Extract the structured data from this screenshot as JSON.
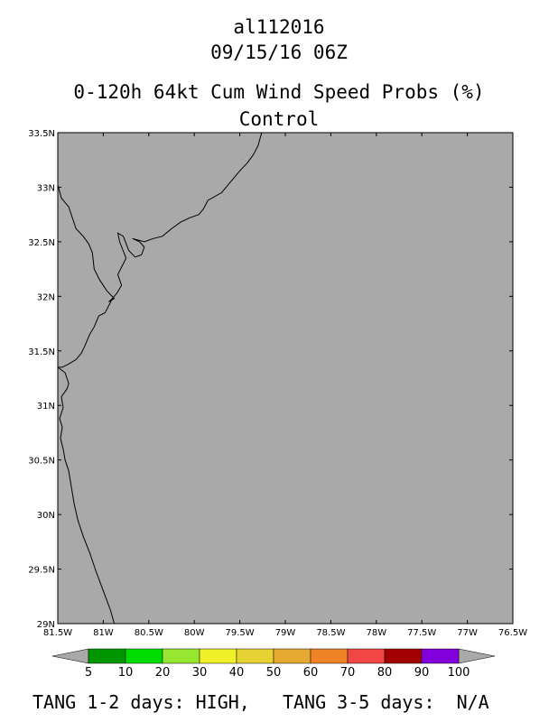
{
  "header": {
    "storm_id": "al112016",
    "datetime": "09/15/16 06Z",
    "product": "0-120h 64kt Cum Wind Speed Probs (%)",
    "run": "Control"
  },
  "map": {
    "lon_range": [
      -81.5,
      -76.5
    ],
    "lat_range": [
      29.0,
      33.5
    ],
    "background_color": "#a9a9a9",
    "lon_ticks": [
      {
        "value": -81.5,
        "label": "81.5W"
      },
      {
        "value": -81.0,
        "label": "81W"
      },
      {
        "value": -80.5,
        "label": "80.5W"
      },
      {
        "value": -80.0,
        "label": "80W"
      },
      {
        "value": -79.5,
        "label": "79.5W"
      },
      {
        "value": -79.0,
        "label": "79W"
      },
      {
        "value": -78.5,
        "label": "78.5W"
      },
      {
        "value": -78.0,
        "label": "78W"
      },
      {
        "value": -77.5,
        "label": "77.5W"
      },
      {
        "value": -77.0,
        "label": "77W"
      },
      {
        "value": -76.5,
        "label": "76.5W"
      }
    ],
    "lat_ticks": [
      {
        "value": 33.5,
        "label": "33.5N"
      },
      {
        "value": 33.0,
        "label": "33N"
      },
      {
        "value": 32.5,
        "label": "32.5N"
      },
      {
        "value": 32.0,
        "label": "32N"
      },
      {
        "value": 31.5,
        "label": "31.5N"
      },
      {
        "value": 31.0,
        "label": "31N"
      },
      {
        "value": 30.5,
        "label": "30.5N"
      },
      {
        "value": 30.0,
        "label": "30N"
      },
      {
        "value": 29.5,
        "label": "29.5N"
      },
      {
        "value": 29.0,
        "label": "29N"
      }
    ],
    "coastline": [
      [
        -81.5,
        33.02
      ],
      [
        -81.46,
        32.9
      ],
      [
        -81.38,
        32.82
      ],
      [
        -81.3,
        32.62
      ],
      [
        -81.22,
        32.55
      ],
      [
        -81.16,
        32.48
      ],
      [
        -81.12,
        32.4
      ],
      [
        -81.1,
        32.25
      ],
      [
        -81.04,
        32.15
      ],
      [
        -80.96,
        32.05
      ],
      [
        -80.88,
        31.98
      ],
      [
        -80.94,
        31.95
      ],
      [
        -80.9,
        31.98
      ],
      [
        -80.85,
        32.03
      ],
      [
        -80.8,
        32.1
      ],
      [
        -80.84,
        32.2
      ],
      [
        -80.78,
        32.3
      ],
      [
        -80.75,
        32.35
      ],
      [
        -80.82,
        32.5
      ],
      [
        -80.84,
        32.58
      ],
      [
        -80.78,
        32.55
      ],
      [
        -80.72,
        32.42
      ],
      [
        -80.65,
        32.36
      ],
      [
        -80.58,
        32.38
      ],
      [
        -80.55,
        32.45
      ],
      [
        -80.6,
        32.5
      ],
      [
        -80.68,
        32.53
      ],
      [
        -80.55,
        32.5
      ],
      [
        -80.45,
        32.53
      ],
      [
        -80.35,
        32.55
      ],
      [
        -80.25,
        32.62
      ],
      [
        -80.15,
        32.68
      ],
      [
        -80.05,
        32.72
      ],
      [
        -79.95,
        32.75
      ],
      [
        -79.9,
        32.8
      ],
      [
        -79.85,
        32.88
      ],
      [
        -79.7,
        32.95
      ],
      [
        -79.6,
        33.05
      ],
      [
        -79.5,
        33.15
      ],
      [
        -79.42,
        33.22
      ],
      [
        -79.35,
        33.3
      ],
      [
        -79.3,
        33.38
      ],
      [
        -79.26,
        33.5
      ]
    ],
    "coastline_south": [
      [
        -81.5,
        31.35
      ],
      [
        -81.42,
        31.3
      ],
      [
        -81.38,
        31.2
      ],
      [
        -81.4,
        31.15
      ],
      [
        -81.46,
        31.08
      ],
      [
        -81.44,
        30.98
      ],
      [
        -81.48,
        30.88
      ],
      [
        -81.45,
        30.8
      ],
      [
        -81.47,
        30.7
      ],
      [
        -81.44,
        30.6
      ],
      [
        -81.42,
        30.5
      ],
      [
        -81.38,
        30.4
      ],
      [
        -81.35,
        30.25
      ],
      [
        -81.32,
        30.1
      ],
      [
        -81.28,
        29.95
      ],
      [
        -81.22,
        29.8
      ],
      [
        -81.15,
        29.65
      ],
      [
        -81.08,
        29.48
      ],
      [
        -81.0,
        29.3
      ],
      [
        -80.92,
        29.12
      ],
      [
        -80.88,
        29.0
      ]
    ],
    "coastline_mid": [
      [
        -80.9,
        31.98
      ],
      [
        -80.98,
        31.85
      ],
      [
        -81.05,
        31.82
      ],
      [
        -81.1,
        31.72
      ],
      [
        -81.15,
        31.65
      ],
      [
        -81.2,
        31.55
      ],
      [
        -81.24,
        31.48
      ],
      [
        -81.3,
        31.42
      ],
      [
        -81.38,
        31.38
      ],
      [
        -81.45,
        31.35
      ],
      [
        -81.5,
        31.35
      ]
    ]
  },
  "colorbar": {
    "labels": [
      "5",
      "10",
      "20",
      "30",
      "40",
      "50",
      "60",
      "70",
      "80",
      "90",
      "100"
    ],
    "colors": [
      "#009600",
      "#00dc00",
      "#96e632",
      "#f0f028",
      "#e6d232",
      "#e6aa32",
      "#f08228",
      "#f04646",
      "#a00000",
      "#8200dc"
    ],
    "end_color": "#a9a9a9"
  },
  "footer": {
    "text": "TANG 1-2 days: HIGH,   TANG 3-5 days:  N/A"
  }
}
